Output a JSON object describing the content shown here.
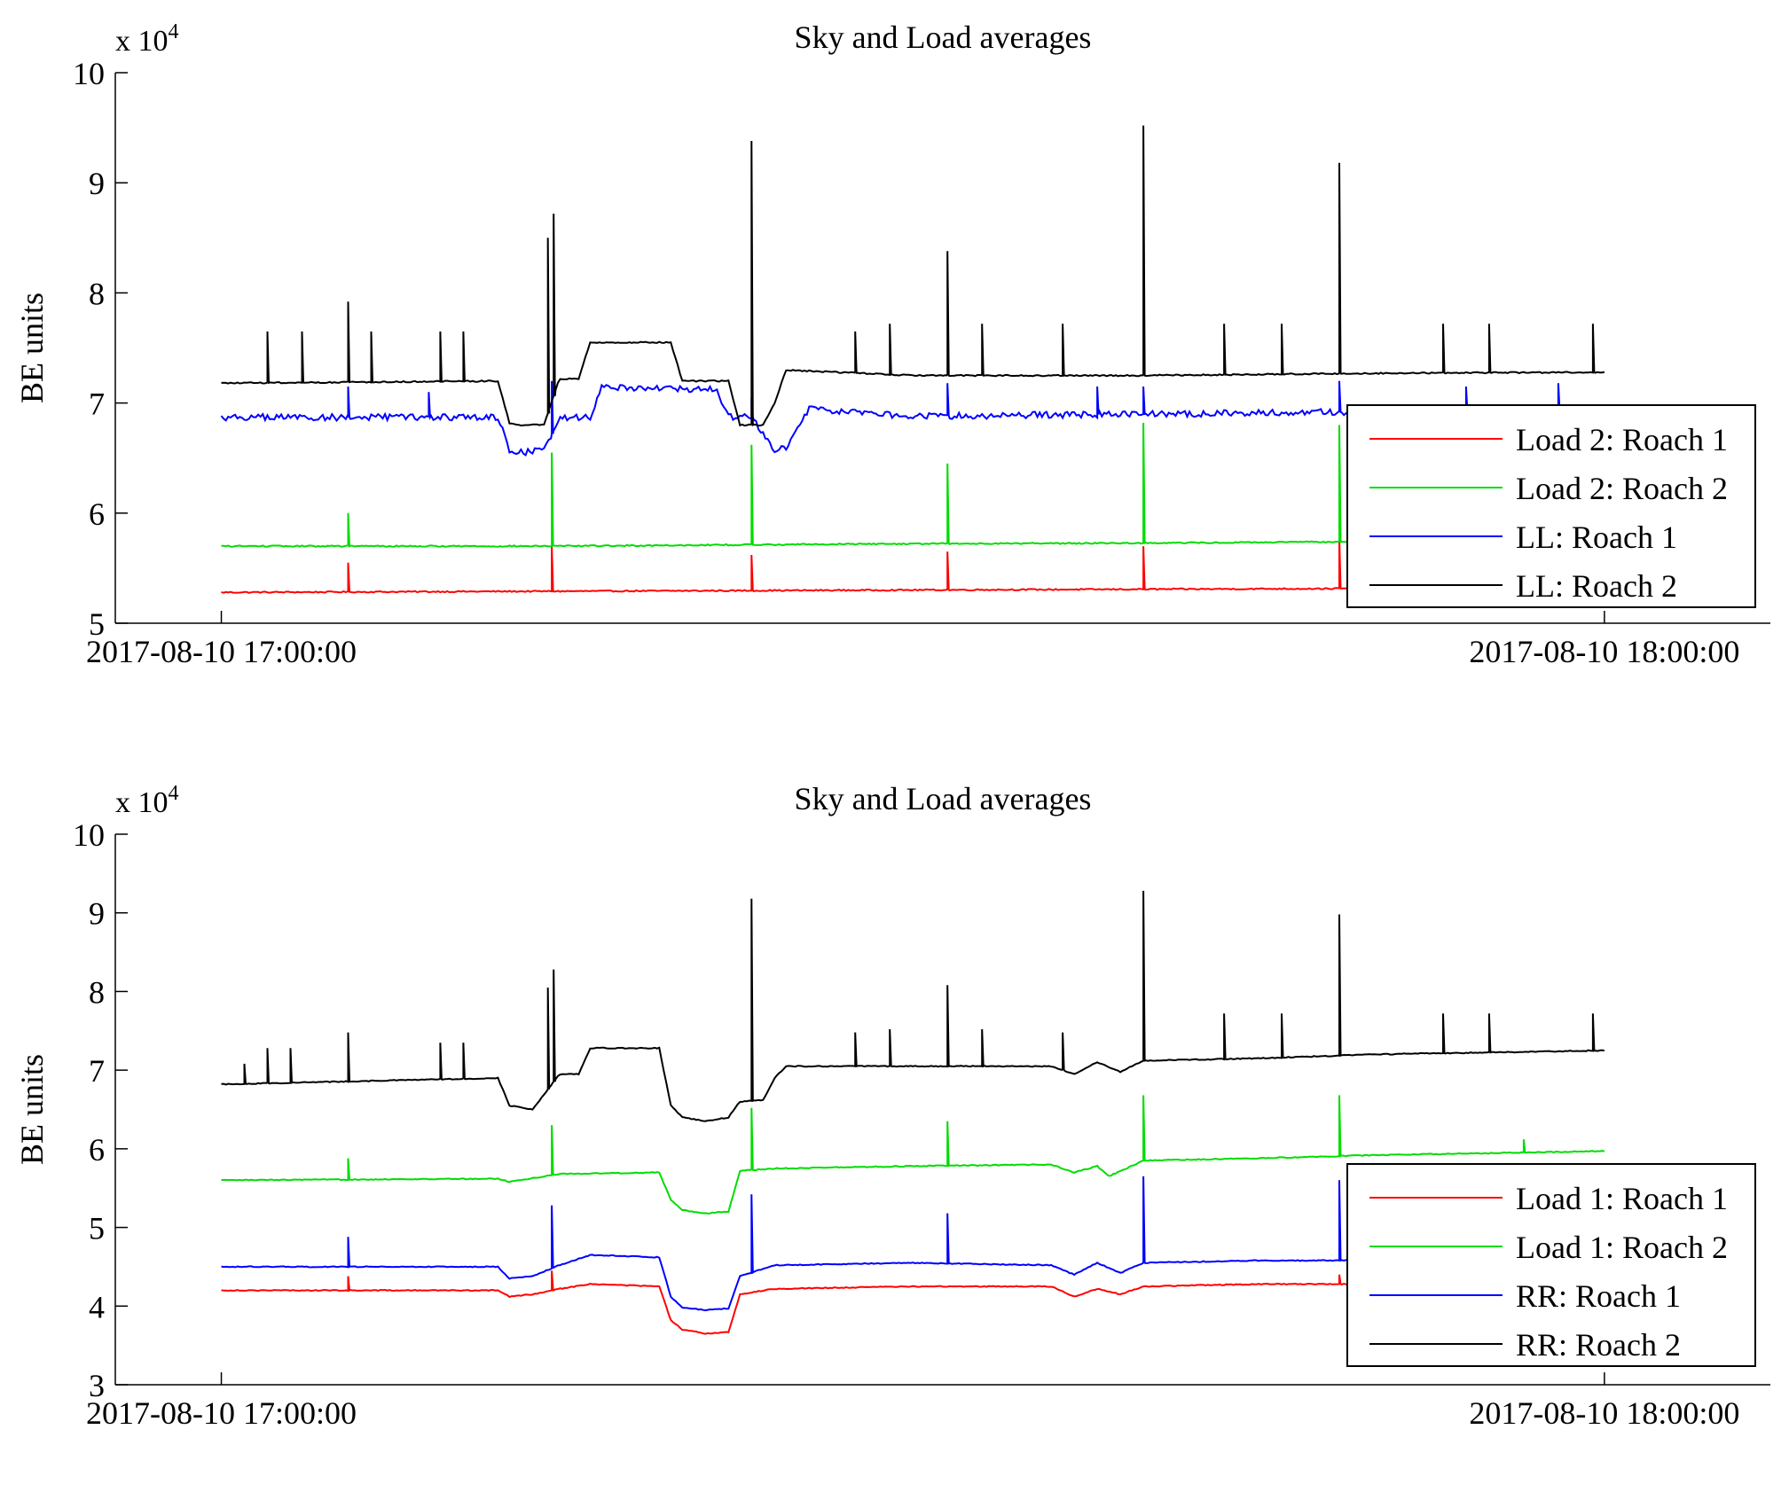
{
  "chart_data": [
    {
      "type": "line",
      "title": "Sky and Load averages",
      "ylabel": "BE units",
      "xlabel": "",
      "y_multiplier": "x 10",
      "y_multiplier_exp": "4",
      "ylim": [
        5,
        10
      ],
      "yticks": [
        5,
        6,
        7,
        8,
        9,
        10
      ],
      "xlim": [
        "2017-08-10 16:55:24",
        "2017-08-10 18:07:12"
      ],
      "xticks": [
        "2017-08-10 17:00:00",
        "2017-08-10 18:00:00"
      ],
      "grid": false,
      "legend_position": "bottom-right",
      "series": [
        {
          "name": "Load 2: Roach 1",
          "color": "#ff0000",
          "x": [
            "17:00:00",
            "17:14:00",
            "17:28:00",
            "17:42:00",
            "17:56:00",
            "18:00:00"
          ],
          "values": [
            5.28,
            5.29,
            5.3,
            5.31,
            5.32,
            5.33
          ],
          "spikes": [
            {
              "x": "17:05:30",
              "y": 5.55
            },
            {
              "x": "17:14:20",
              "y": 5.7
            },
            {
              "x": "17:23:00",
              "y": 5.62
            },
            {
              "x": "17:31:30",
              "y": 5.65
            },
            {
              "x": "17:40:00",
              "y": 5.7
            },
            {
              "x": "17:48:30",
              "y": 5.78
            }
          ]
        },
        {
          "name": "Load 2: Roach 2",
          "color": "#00dd00",
          "x": [
            "17:00:00",
            "17:14:00",
            "17:28:00",
            "17:42:00",
            "17:56:00",
            "18:00:00"
          ],
          "values": [
            5.7,
            5.7,
            5.72,
            5.73,
            5.75,
            5.76
          ],
          "spikes": [
            {
              "x": "17:05:30",
              "y": 6.0
            },
            {
              "x": "17:14:20",
              "y": 6.55
            },
            {
              "x": "17:23:00",
              "y": 6.62
            },
            {
              "x": "17:31:30",
              "y": 6.45
            },
            {
              "x": "17:40:00",
              "y": 6.82
            },
            {
              "x": "17:48:30",
              "y": 6.8
            }
          ]
        },
        {
          "name": "LL: Roach 1",
          "color": "#0000ff",
          "x": [
            "17:00:00",
            "17:12:00",
            "17:12:30",
            "17:13:00",
            "17:14:00",
            "17:14:40",
            "17:16:00",
            "17:16:30",
            "17:19:30",
            "17:21:30",
            "17:22:00",
            "17:23:00",
            "17:24:00",
            "17:24:30",
            "17:25:30",
            "17:30:00",
            "17:40:00",
            "17:50:00",
            "18:00:00"
          ],
          "values": [
            6.87,
            6.87,
            6.58,
            6.55,
            6.57,
            6.87,
            6.87,
            7.15,
            7.13,
            7.12,
            6.87,
            6.87,
            6.58,
            6.58,
            6.95,
            6.88,
            6.9,
            6.92,
            6.93
          ],
          "spikes": [
            {
              "x": "17:05:30",
              "y": 7.15
            },
            {
              "x": "17:09:00",
              "y": 7.1
            },
            {
              "x": "17:14:20",
              "y": 7.2
            },
            {
              "x": "17:23:00",
              "y": 7.05
            },
            {
              "x": "17:31:30",
              "y": 7.18
            },
            {
              "x": "17:38:00",
              "y": 7.15
            },
            {
              "x": "17:40:00",
              "y": 7.15
            },
            {
              "x": "17:48:30",
              "y": 7.2
            },
            {
              "x": "17:54:00",
              "y": 7.15
            },
            {
              "x": "17:58:00",
              "y": 7.18
            }
          ]
        },
        {
          "name": "LL: Roach 2",
          "color": "#000000",
          "x": [
            "17:00:00",
            "17:12:00",
            "17:12:30",
            "17:13:00",
            "17:14:00",
            "17:14:40",
            "17:15:30",
            "17:16:00",
            "17:19:30",
            "17:20:00",
            "17:22:00",
            "17:22:30",
            "17:23:30",
            "17:24:00",
            "17:24:30",
            "17:30:00",
            "17:40:00",
            "17:50:00",
            "18:00:00"
          ],
          "values": [
            7.18,
            7.2,
            6.82,
            6.8,
            6.8,
            7.22,
            7.22,
            7.55,
            7.55,
            7.2,
            7.2,
            6.8,
            6.8,
            7.0,
            7.3,
            7.25,
            7.25,
            7.27,
            7.28
          ],
          "spikes": [
            {
              "x": "17:02:00",
              "y": 7.65
            },
            {
              "x": "17:03:30",
              "y": 7.65
            },
            {
              "x": "17:05:30",
              "y": 7.92
            },
            {
              "x": "17:06:30",
              "y": 7.65
            },
            {
              "x": "17:09:30",
              "y": 7.65
            },
            {
              "x": "17:10:30",
              "y": 7.65
            },
            {
              "x": "17:14:10",
              "y": 8.5
            },
            {
              "x": "17:14:25",
              "y": 8.72
            },
            {
              "x": "17:23:00",
              "y": 9.38
            },
            {
              "x": "17:27:30",
              "y": 7.65
            },
            {
              "x": "17:29:00",
              "y": 7.72
            },
            {
              "x": "17:31:30",
              "y": 8.38
            },
            {
              "x": "17:33:00",
              "y": 7.72
            },
            {
              "x": "17:36:30",
              "y": 7.72
            },
            {
              "x": "17:40:00",
              "y": 9.52
            },
            {
              "x": "17:43:30",
              "y": 7.72
            },
            {
              "x": "17:46:00",
              "y": 7.72
            },
            {
              "x": "17:48:30",
              "y": 9.18
            },
            {
              "x": "17:53:00",
              "y": 7.72
            },
            {
              "x": "17:55:00",
              "y": 7.72
            },
            {
              "x": "17:59:30",
              "y": 7.72
            }
          ]
        }
      ]
    },
    {
      "type": "line",
      "title": "Sky and Load averages",
      "ylabel": "BE units",
      "xlabel": "",
      "y_multiplier": "x 10",
      "y_multiplier_exp": "4",
      "ylim": [
        3,
        10
      ],
      "yticks": [
        3,
        4,
        5,
        6,
        7,
        8,
        9,
        10
      ],
      "xlim": [
        "2017-08-10 16:55:24",
        "2017-08-10 18:07:12"
      ],
      "xticks": [
        "2017-08-10 17:00:00",
        "2017-08-10 18:00:00"
      ],
      "grid": false,
      "legend_position": "bottom-right",
      "series": [
        {
          "name": "Load 1: Roach 1",
          "color": "#ff0000",
          "x": [
            "17:00:00",
            "17:12:00",
            "17:12:30",
            "17:13:30",
            "17:14:40",
            "17:16:00",
            "17:19:00",
            "17:19:30",
            "17:20:00",
            "17:21:00",
            "17:22:00",
            "17:22:30",
            "17:24:00",
            "17:30:00",
            "17:36:00",
            "17:37:00",
            "17:38:00",
            "17:39:00",
            "17:40:00",
            "17:45:00",
            "17:50:00",
            "18:00:00"
          ],
          "values": [
            4.2,
            4.2,
            4.12,
            4.15,
            4.22,
            4.28,
            4.25,
            3.82,
            3.7,
            3.65,
            3.67,
            4.15,
            4.22,
            4.25,
            4.25,
            4.12,
            4.22,
            4.15,
            4.25,
            4.28,
            4.28,
            4.32
          ],
          "spikes": [
            {
              "x": "17:05:30",
              "y": 4.38
            },
            {
              "x": "17:14:20",
              "y": 4.45
            },
            {
              "x": "17:48:30",
              "y": 4.4
            }
          ]
        },
        {
          "name": "Load 1: Roach 2",
          "color": "#00dd00",
          "x": [
            "17:00:00",
            "17:12:00",
            "17:12:30",
            "17:14:40",
            "17:19:00",
            "17:19:30",
            "17:20:00",
            "17:21:00",
            "17:22:00",
            "17:22:30",
            "17:24:00",
            "17:30:00",
            "17:36:00",
            "17:37:00",
            "17:38:00",
            "17:38:30",
            "17:39:30",
            "17:40:00",
            "17:45:00",
            "17:50:00",
            "18:00:00"
          ],
          "values": [
            5.6,
            5.62,
            5.58,
            5.68,
            5.7,
            5.35,
            5.22,
            5.18,
            5.2,
            5.72,
            5.75,
            5.78,
            5.8,
            5.7,
            5.78,
            5.65,
            5.78,
            5.85,
            5.88,
            5.92,
            5.97
          ],
          "spikes": [
            {
              "x": "17:05:30",
              "y": 5.88
            },
            {
              "x": "17:14:20",
              "y": 6.3
            },
            {
              "x": "17:23:00",
              "y": 6.52
            },
            {
              "x": "17:31:30",
              "y": 6.35
            },
            {
              "x": "17:40:00",
              "y": 6.68
            },
            {
              "x": "17:48:30",
              "y": 6.68
            },
            {
              "x": "17:56:30",
              "y": 6.12
            }
          ]
        },
        {
          "name": "RR: Roach 1",
          "color": "#0000ff",
          "x": [
            "17:00:00",
            "17:12:00",
            "17:12:30",
            "17:13:30",
            "17:14:40",
            "17:16:00",
            "17:19:00",
            "17:19:30",
            "17:20:00",
            "17:21:00",
            "17:22:00",
            "17:22:30",
            "17:24:00",
            "17:30:00",
            "17:36:00",
            "17:37:00",
            "17:38:00",
            "17:39:00",
            "17:40:00",
            "17:45:00",
            "17:50:00",
            "18:00:00"
          ],
          "values": [
            4.5,
            4.5,
            4.35,
            4.38,
            4.52,
            4.65,
            4.62,
            4.12,
            3.98,
            3.95,
            3.97,
            4.38,
            4.52,
            4.55,
            4.52,
            4.4,
            4.55,
            4.42,
            4.55,
            4.58,
            4.58,
            4.62
          ],
          "spikes": [
            {
              "x": "17:05:30",
              "y": 4.88
            },
            {
              "x": "17:14:20",
              "y": 5.28
            },
            {
              "x": "17:23:00",
              "y": 5.42
            },
            {
              "x": "17:31:30",
              "y": 5.18
            },
            {
              "x": "17:40:00",
              "y": 5.65
            },
            {
              "x": "17:48:30",
              "y": 5.6
            }
          ]
        },
        {
          "name": "RR: Roach 2",
          "color": "#000000",
          "x": [
            "17:00:00",
            "17:12:00",
            "17:12:30",
            "17:13:30",
            "17:14:40",
            "17:15:30",
            "17:16:00",
            "17:19:00",
            "17:19:30",
            "17:20:00",
            "17:21:00",
            "17:22:00",
            "17:22:30",
            "17:23:30",
            "17:24:00",
            "17:24:30",
            "17:30:00",
            "17:36:00",
            "17:37:00",
            "17:38:00",
            "17:39:00",
            "17:40:00",
            "17:45:00",
            "17:50:00",
            "18:00:00"
          ],
          "values": [
            6.82,
            6.9,
            6.55,
            6.5,
            6.95,
            6.95,
            7.28,
            7.28,
            6.55,
            6.4,
            6.35,
            6.4,
            6.6,
            6.62,
            6.9,
            7.05,
            7.05,
            7.05,
            6.95,
            7.1,
            6.98,
            7.12,
            7.15,
            7.2,
            7.25
          ],
          "spikes": [
            {
              "x": "17:01:00",
              "y": 7.08
            },
            {
              "x": "17:02:00",
              "y": 7.28
            },
            {
              "x": "17:03:00",
              "y": 7.28
            },
            {
              "x": "17:05:30",
              "y": 7.48
            },
            {
              "x": "17:09:30",
              "y": 7.35
            },
            {
              "x": "17:10:30",
              "y": 7.35
            },
            {
              "x": "17:14:10",
              "y": 8.05
            },
            {
              "x": "17:14:25",
              "y": 8.28
            },
            {
              "x": "17:23:00",
              "y": 9.18
            },
            {
              "x": "17:27:30",
              "y": 7.48
            },
            {
              "x": "17:29:00",
              "y": 7.52
            },
            {
              "x": "17:31:30",
              "y": 8.08
            },
            {
              "x": "17:33:00",
              "y": 7.52
            },
            {
              "x": "17:36:30",
              "y": 7.48
            },
            {
              "x": "17:40:00",
              "y": 9.28
            },
            {
              "x": "17:43:30",
              "y": 7.72
            },
            {
              "x": "17:46:00",
              "y": 7.72
            },
            {
              "x": "17:48:30",
              "y": 8.98
            },
            {
              "x": "17:53:00",
              "y": 7.72
            },
            {
              "x": "17:55:00",
              "y": 7.72
            },
            {
              "x": "17:59:30",
              "y": 7.72
            }
          ]
        }
      ]
    }
  ]
}
